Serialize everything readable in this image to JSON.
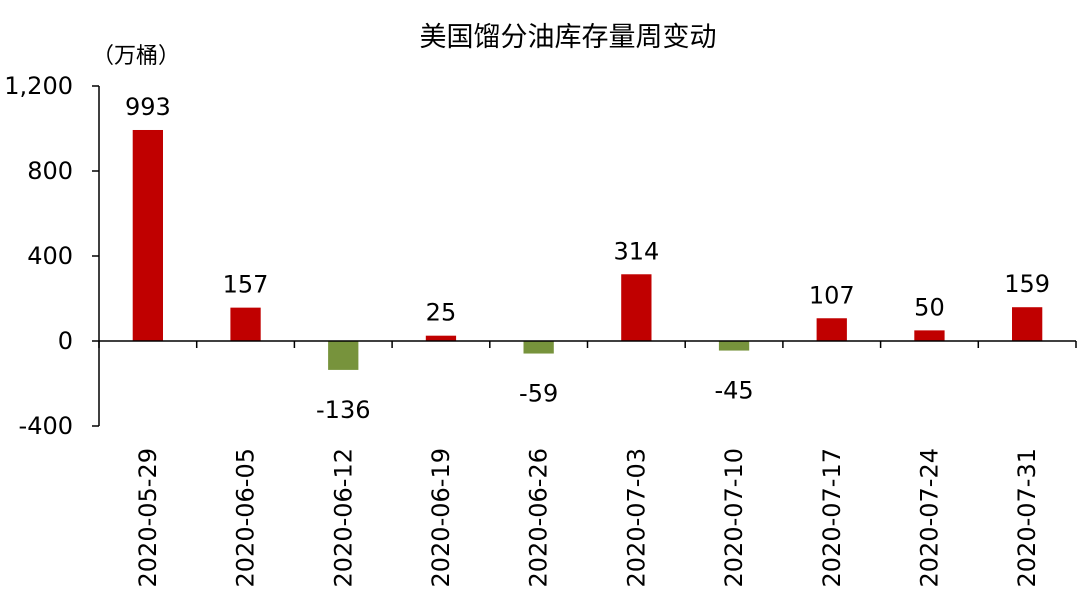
{
  "colors": {
    "positive": "#C00000",
    "negative": "#77933C",
    "axis": "#000000"
  },
  "chart_data": {
    "type": "bar",
    "title": "美国馏分油库存量周变动",
    "unit_label": "（万桶）",
    "categories": [
      "2020-05-29",
      "2020-06-05",
      "2020-06-12",
      "2020-06-19",
      "2020-06-26",
      "2020-07-03",
      "2020-07-10",
      "2020-07-17",
      "2020-07-24",
      "2020-07-31"
    ],
    "values": [
      993,
      157,
      -136,
      25,
      -59,
      314,
      -45,
      107,
      50,
      159
    ],
    "data_labels": [
      "993",
      "157",
      "-136",
      "25",
      "-59",
      "314",
      "-45",
      "107",
      "50",
      "159"
    ],
    "ylim": [
      -400,
      1200
    ],
    "yticks": [
      -400,
      0,
      400,
      800,
      1200
    ],
    "ytick_labels": [
      "-400",
      "0",
      "400",
      "800",
      "1,200"
    ],
    "grid": false,
    "legend": "none"
  }
}
